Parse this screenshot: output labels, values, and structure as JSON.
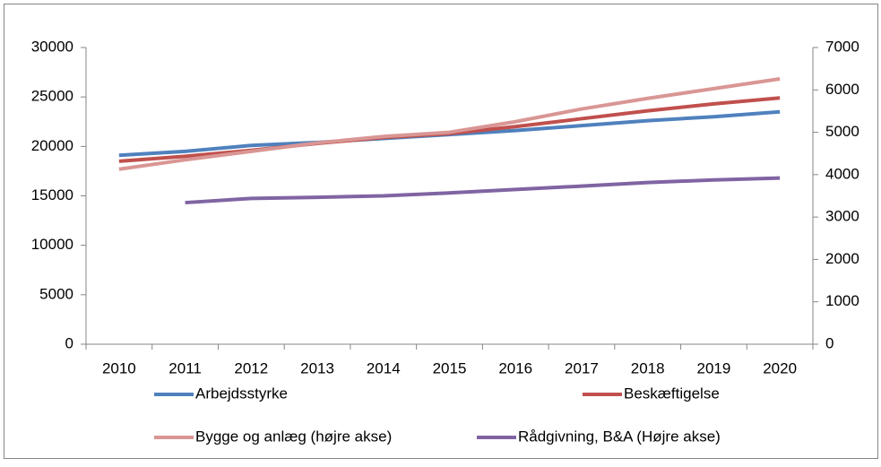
{
  "chart_data": {
    "type": "line",
    "categories": [
      "2010",
      "2011",
      "2012",
      "2013",
      "2014",
      "2015",
      "2016",
      "2017",
      "2018",
      "2019",
      "2020"
    ],
    "series": [
      {
        "name": "Arbejdsstyrke",
        "color": "#4f81bd",
        "values": [
          19100,
          19500,
          20100,
          20400,
          20800,
          21200,
          21600,
          22100,
          22600,
          23000,
          23500
        ]
      },
      {
        "name": "Beskæftigelse",
        "color": "#c0504d",
        "values": [
          18500,
          19000,
          19600,
          20300,
          20900,
          21300,
          22000,
          22800,
          23600,
          24300,
          24900
        ]
      },
      {
        "name": "Bygge og anlæg (højre akse)",
        "color": "#d99694",
        "axis": "y2",
        "values": [
          4130,
          4350,
          4550,
          4750,
          4900,
          5000,
          5250,
          5550,
          5800,
          6030,
          6260
        ]
      },
      {
        "name": "Rådgivning, B&A (Højre akse)",
        "color": "#8064a2",
        "axis": "y2",
        "values": [
          null,
          3340,
          3440,
          3465,
          3500,
          3570,
          3650,
          3730,
          3815,
          3875,
          3920
        ]
      }
    ],
    "ylim": [
      0,
      30000
    ],
    "yticks": [
      0,
      5000,
      10000,
      15000,
      20000,
      25000,
      30000
    ],
    "y2lim": [
      0,
      7000
    ],
    "y2ticks": [
      0,
      1000,
      2000,
      3000,
      4000,
      5000,
      6000,
      7000
    ],
    "grid": false
  }
}
